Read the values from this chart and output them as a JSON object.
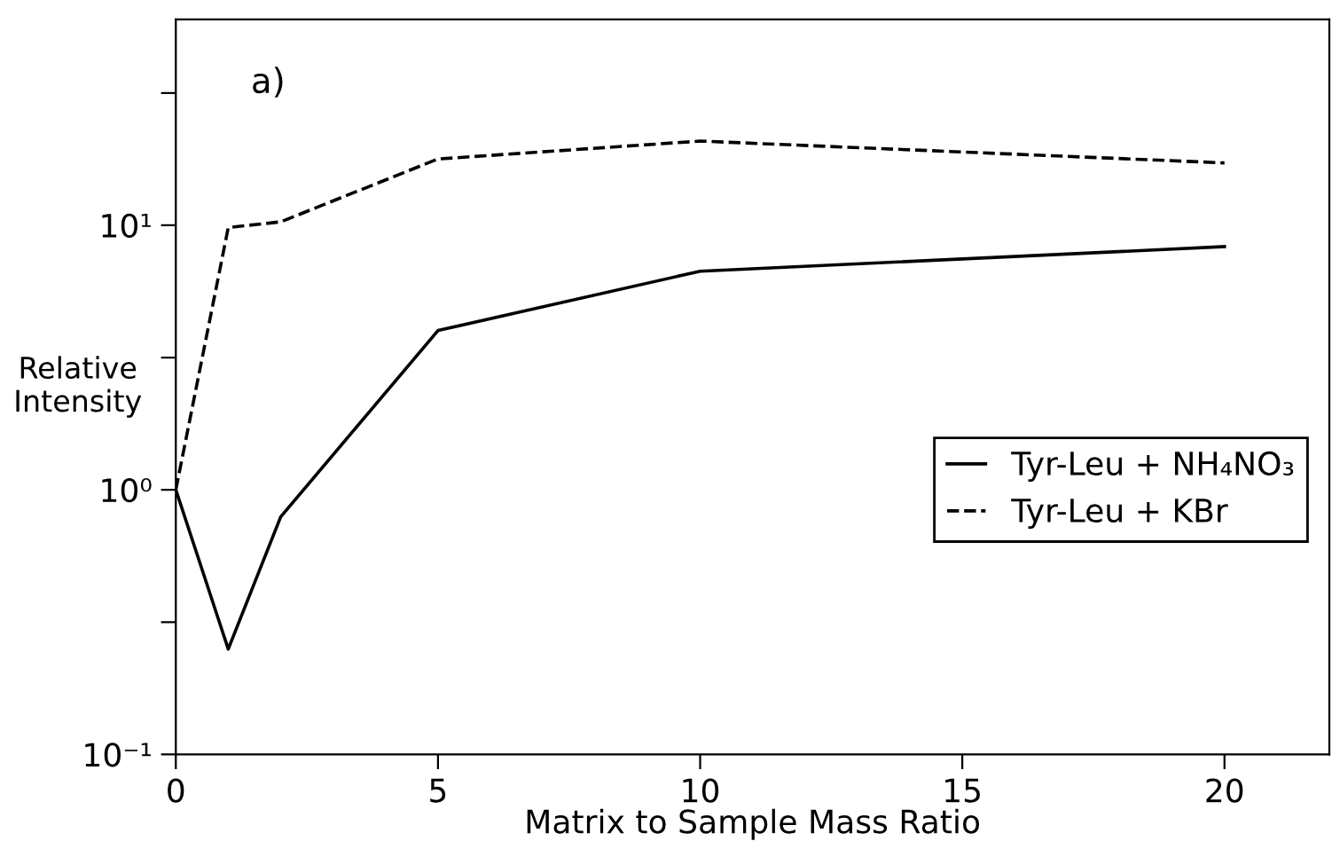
{
  "chart_data": {
    "type": "line",
    "xlabel": "Matrix to Sample Mass Ratio",
    "ylabel": "Relative\nIntensity",
    "annotations": [
      "a)"
    ],
    "x": [
      0,
      1,
      2,
      5,
      10,
      20
    ],
    "series": [
      {
        "name": "Tyr-Leu + NH₄NO₃",
        "color": "#000000",
        "line_style": "solid",
        "values": [
          1,
          0.25,
          0.79,
          4.0,
          6.7,
          8.3
        ]
      },
      {
        "name": "Tyr-Leu + KBr",
        "color": "#000000",
        "line_style": "dashed",
        "values": [
          1,
          9.8,
          10.3,
          17.8,
          20.8,
          17.2
        ]
      }
    ],
    "log": "y",
    "xlim": [
      0,
      22
    ],
    "xticks": [
      0,
      5,
      10,
      15,
      20
    ],
    "ylim": [
      0.1,
      60
    ],
    "yticks": [
      {
        "value": 0.1,
        "label": "10⁻¹"
      },
      {
        "value": 0.316,
        "label": null
      },
      {
        "value": 1,
        "label": "10⁰"
      },
      {
        "value": 3.16,
        "label": null
      },
      {
        "value": 10,
        "label": "10¹"
      },
      {
        "value": 31.6,
        "label": null
      }
    ],
    "grid": false,
    "legend": "right",
    "marker": "none"
  }
}
